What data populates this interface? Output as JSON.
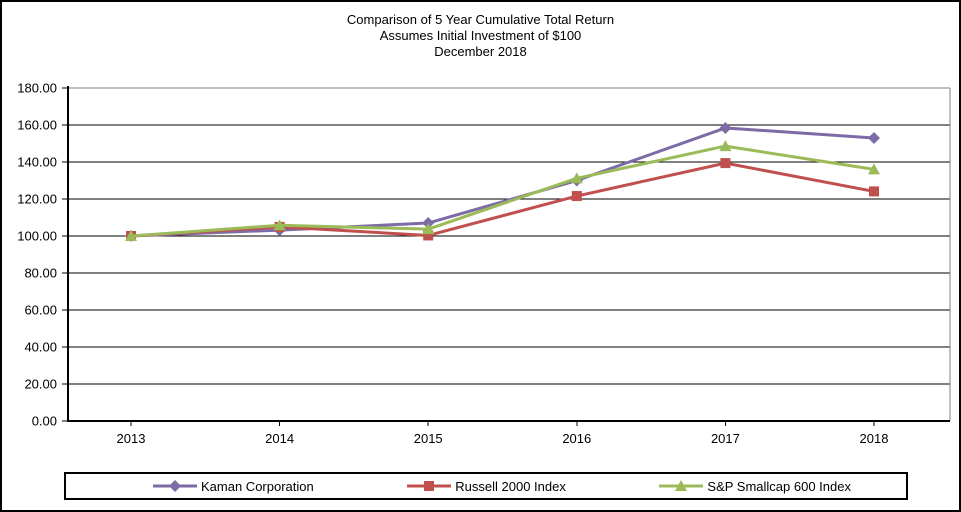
{
  "chart_data": {
    "type": "line",
    "title": "Comparison of 5 Year Cumulative Total Return",
    "subtitle": "Assumes Initial Investment of $100",
    "date_label": "December 2018",
    "categories": [
      "2013",
      "2014",
      "2015",
      "2016",
      "2017",
      "2018"
    ],
    "series": [
      {
        "name": "Kaman Corporation",
        "marker": "diamond",
        "color": "#7D6BA6",
        "values": [
          100.0,
          103.2,
          107.0,
          130.0,
          158.4,
          153.0
        ]
      },
      {
        "name": "Russell 2000 Index",
        "marker": "square",
        "color": "#C0504D",
        "values": [
          100.0,
          104.9,
          100.3,
          121.6,
          139.4,
          124.1
        ]
      },
      {
        "name": "S&P Smallcap 600 Index",
        "marker": "triangle",
        "color": "#9BBB59",
        "values": [
          100.0,
          105.8,
          103.7,
          131.2,
          148.6,
          136.0
        ]
      }
    ],
    "xlabel": "",
    "ylabel": "",
    "ylim": [
      0,
      180
    ],
    "ytick_step": 20,
    "yticks": [
      "180.00",
      "160.00",
      "140.00",
      "120.00",
      "100.00",
      "80.00",
      "60.00",
      "40.00",
      "20.00",
      "0.00"
    ],
    "grid": "horizontal-only",
    "legend_position": "bottom"
  },
  "colors": {
    "background": "#ffffff",
    "gridline": "#000000",
    "plot_border": "#808080",
    "axis": "#000000",
    "text": "#000000"
  }
}
